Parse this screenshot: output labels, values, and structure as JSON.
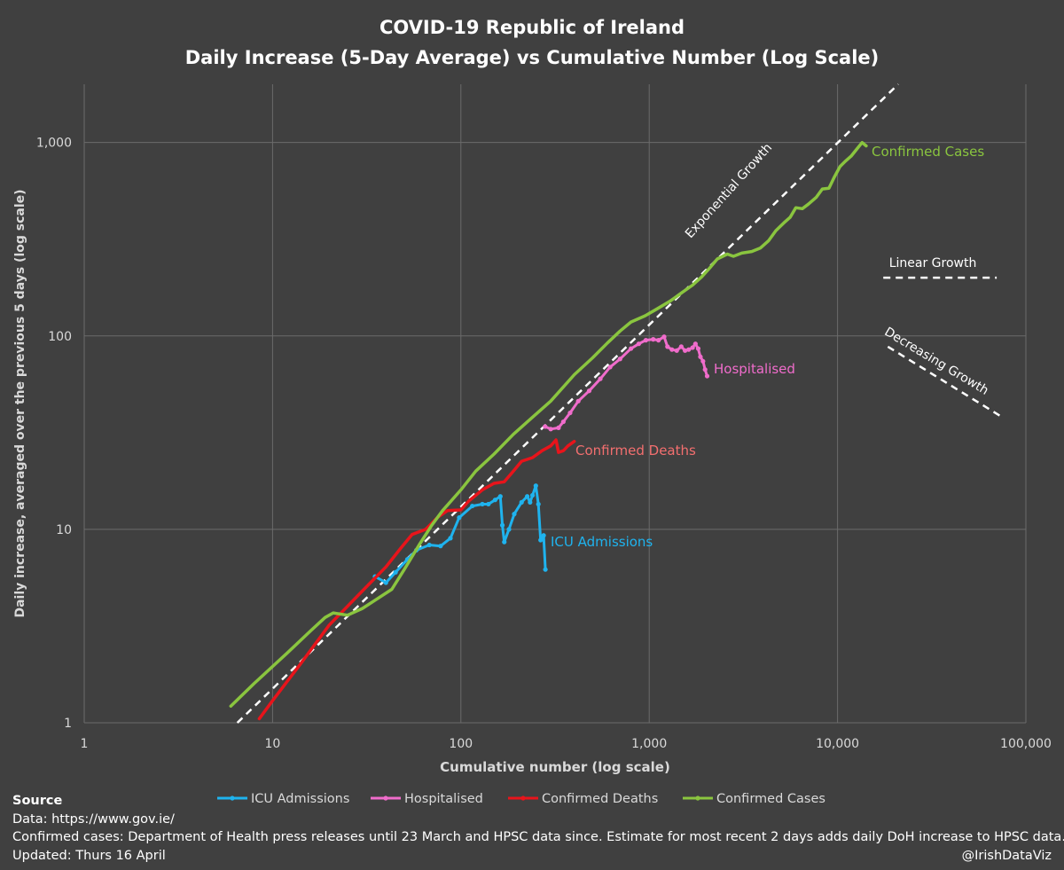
{
  "chart_data": {
    "type": "line",
    "title": "COVID-19 Republic of Ireland",
    "subtitle": "Daily Increase (5-Day Average) vs Cumulative Number (Log Scale)",
    "xlabel": "Cumulative number (log scale)",
    "ylabel": "Daily increase, averaged over the previous 5 days  (log scale)",
    "x_scale": "log",
    "y_scale": "log",
    "xlim": [
      1,
      100000
    ],
    "ylim": [
      1,
      2000
    ],
    "x_ticks": [
      1,
      10,
      100,
      1000,
      10000,
      100000
    ],
    "x_tick_labels": [
      "1",
      "10",
      "100",
      "1,000",
      "10,000",
      "100,000"
    ],
    "y_ticks": [
      1,
      10,
      100,
      1000
    ],
    "y_tick_labels": [
      "1",
      "10",
      "100",
      "1,000"
    ],
    "grid": true,
    "legend_position": "bottom",
    "series": [
      {
        "name": "ICU Admissions",
        "color": "#1fb3ee",
        "markers": true,
        "points": [
          [
            35,
            5.7
          ],
          [
            40,
            5.3
          ],
          [
            45,
            6.0
          ],
          [
            52,
            7.0
          ],
          [
            58,
            7.8
          ],
          [
            68,
            8.3
          ],
          [
            78,
            8.2
          ],
          [
            88,
            9.0
          ],
          [
            98,
            11.5
          ],
          [
            115,
            13.2
          ],
          [
            130,
            13.5
          ],
          [
            140,
            13.5
          ],
          [
            152,
            14.2
          ],
          [
            162,
            14.8
          ],
          [
            166,
            10.5
          ],
          [
            170,
            8.6
          ],
          [
            180,
            10.0
          ],
          [
            192,
            12.0
          ],
          [
            210,
            13.8
          ],
          [
            225,
            14.8
          ],
          [
            233,
            13.8
          ],
          [
            240,
            15.0
          ],
          [
            250,
            16.8
          ],
          [
            258,
            13.5
          ],
          [
            265,
            8.8
          ],
          [
            270,
            9.0
          ],
          [
            275,
            9.3
          ],
          [
            281,
            6.2
          ]
        ]
      },
      {
        "name": "Hospitalised",
        "color": "#f06ccb",
        "markers": true,
        "points": [
          [
            280,
            34
          ],
          [
            300,
            33
          ],
          [
            330,
            33.5
          ],
          [
            350,
            36
          ],
          [
            380,
            40
          ],
          [
            420,
            46
          ],
          [
            480,
            52
          ],
          [
            550,
            60
          ],
          [
            620,
            69
          ],
          [
            700,
            76
          ],
          [
            800,
            86
          ],
          [
            880,
            91
          ],
          [
            960,
            95
          ],
          [
            1050,
            96
          ],
          [
            1120,
            95
          ],
          [
            1200,
            99
          ],
          [
            1250,
            88
          ],
          [
            1320,
            85
          ],
          [
            1400,
            84
          ],
          [
            1480,
            88
          ],
          [
            1550,
            84
          ],
          [
            1620,
            85
          ],
          [
            1700,
            87
          ],
          [
            1760,
            91
          ],
          [
            1820,
            86
          ],
          [
            1870,
            78
          ],
          [
            1930,
            74
          ],
          [
            1980,
            67
          ],
          [
            2030,
            62
          ]
        ]
      },
      {
        "name": "Confirmed Deaths",
        "color": "#e8141b",
        "markers": false,
        "points": [
          [
            8.5,
            1.05
          ],
          [
            10,
            1.3
          ],
          [
            14,
            2.0
          ],
          [
            20,
            3.2
          ],
          [
            30,
            4.8
          ],
          [
            40,
            6.4
          ],
          [
            48,
            8.0
          ],
          [
            55,
            9.4
          ],
          [
            65,
            10.0
          ],
          [
            75,
            11.5
          ],
          [
            85,
            12.5
          ],
          [
            100,
            12.6
          ],
          [
            110,
            14.0
          ],
          [
            130,
            16.0
          ],
          [
            150,
            17.3
          ],
          [
            170,
            17.6
          ],
          [
            190,
            20.0
          ],
          [
            210,
            22.5
          ],
          [
            240,
            23.5
          ],
          [
            270,
            25.5
          ],
          [
            300,
            27.0
          ],
          [
            320,
            29.0
          ],
          [
            330,
            25.0
          ],
          [
            350,
            25.5
          ],
          [
            370,
            27.0
          ],
          [
            400,
            28.5
          ]
        ]
      },
      {
        "name": "Confirmed Cases",
        "color": "#8ac53f",
        "markers": false,
        "points": [
          [
            6,
            1.22
          ],
          [
            8,
            1.6
          ],
          [
            12,
            2.3
          ],
          [
            16,
            3.0
          ],
          [
            19,
            3.5
          ],
          [
            21,
            3.7
          ],
          [
            25,
            3.6
          ],
          [
            30,
            3.9
          ],
          [
            35,
            4.3
          ],
          [
            43,
            4.9
          ],
          [
            50,
            6.2
          ],
          [
            60,
            8.3
          ],
          [
            70,
            10.5
          ],
          [
            80,
            12.5
          ],
          [
            100,
            16.0
          ],
          [
            120,
            20.0
          ],
          [
            150,
            24.5
          ],
          [
            190,
            31.0
          ],
          [
            240,
            38.0
          ],
          [
            300,
            46.0
          ],
          [
            400,
            63.0
          ],
          [
            500,
            77.0
          ],
          [
            600,
            92.0
          ],
          [
            700,
            106
          ],
          [
            800,
            118
          ],
          [
            950,
            127
          ],
          [
            1100,
            138
          ],
          [
            1300,
            152
          ],
          [
            1500,
            168
          ],
          [
            1700,
            183
          ],
          [
            1900,
            202
          ],
          [
            2100,
            225
          ],
          [
            2300,
            250
          ],
          [
            2600,
            265
          ],
          [
            2800,
            258
          ],
          [
            3100,
            268
          ],
          [
            3500,
            273
          ],
          [
            3900,
            285
          ],
          [
            4300,
            310
          ],
          [
            4700,
            350
          ],
          [
            5200,
            385
          ],
          [
            5600,
            410
          ],
          [
            6000,
            460
          ],
          [
            6500,
            455
          ],
          [
            7000,
            480
          ],
          [
            7700,
            520
          ],
          [
            8300,
            575
          ],
          [
            9000,
            580
          ],
          [
            9600,
            660
          ],
          [
            10300,
            750
          ],
          [
            11000,
            800
          ],
          [
            11800,
            850
          ],
          [
            12600,
            920
          ],
          [
            13500,
            1000
          ],
          [
            14200,
            960
          ]
        ]
      }
    ],
    "reference_lines": [
      {
        "name": "Exponential Growth",
        "style": "dashed",
        "color": "#ffffff",
        "x": [
          6.5,
          21000
        ],
        "y": [
          1.0,
          2000
        ]
      },
      {
        "name": "Linear Growth",
        "style": "dashed",
        "color": "#ffffff",
        "x": [
          17500,
          70000
        ],
        "y": [
          200,
          200
        ]
      },
      {
        "name": "Decreasing Growth",
        "style": "dashed",
        "color": "#ffffff",
        "x": [
          18500,
          75000
        ],
        "y": [
          88,
          38
        ]
      }
    ],
    "annotations": [
      {
        "text": "Confirmed Cases",
        "series": "Confirmed Cases",
        "color": "#8ac53f"
      },
      {
        "text": "Hospitalised",
        "series": "Hospitalised",
        "color": "#f06ccb"
      },
      {
        "text": "Confirmed Deaths",
        "series": "Confirmed Deaths",
        "color": "#f36f6f"
      },
      {
        "text": "ICU Admissions",
        "series": "ICU Admissions",
        "color": "#1fb3ee"
      },
      {
        "text": "Exponential Growth",
        "color": "#ffffff"
      },
      {
        "text": "Linear Growth",
        "color": "#ffffff"
      },
      {
        "text": "Decreasing Growth",
        "color": "#ffffff"
      }
    ],
    "colors": {
      "background": "#404040",
      "grid": "#6b6b6b",
      "axis_text": "#d9d9d9"
    }
  },
  "source": {
    "heading": "Source",
    "data_line": "Data: https://www.gov.ie/",
    "cases_note": "Confirmed cases: Department of Health press releases until 23 March and HPSC data since. Estimate for most recent 2 days adds daily DoH increase to HPSC data.",
    "updated": "Updated: Thurs 16 April",
    "credit": "@IrishDataViz"
  }
}
